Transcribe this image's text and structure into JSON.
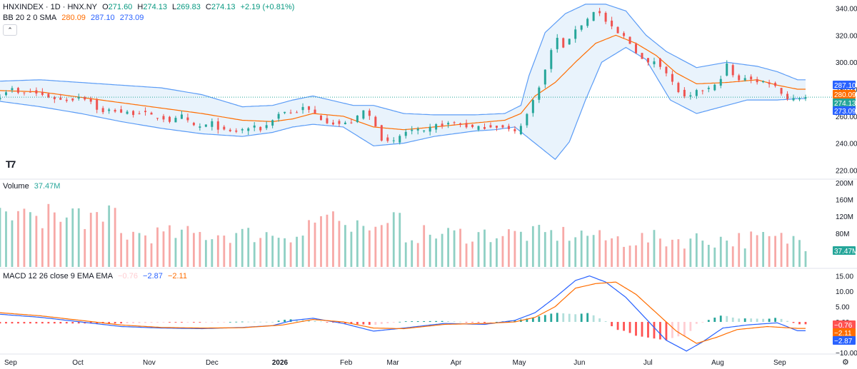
{
  "header": {
    "symbol": "HNXINDEX · 1D · HNX.NY",
    "o_label": "O",
    "o": "271.60",
    "h_label": "H",
    "h": "274.13",
    "l_label": "L",
    "l": "269.83",
    "c_label": "C",
    "c": "274.13",
    "change": "+2.19 (+0.81%)"
  },
  "bb_legend": {
    "label": "BB 20 2 0 SMA",
    "basis": "280.09",
    "upper": "287.10",
    "lower": "273.09"
  },
  "volume_legend": {
    "label": "Volume",
    "value": "37.47M"
  },
  "macd_legend": {
    "label": "MACD 12 26 close 9 EMA EMA",
    "hist": "−0.76",
    "macd": "−2.87",
    "signal": "−2.11"
  },
  "icons": {
    "collapse": "chevron-up-icon",
    "logo": "tradingview-logo-icon",
    "settings": "gear-icon"
  },
  "colors": {
    "up": "#26a69a",
    "down": "#ef5350",
    "vol_up": "#8fd0c4",
    "vol_down": "#f7a9a7",
    "bb_band": "#2962ff",
    "bb_line": "#5b9cf6",
    "basis": "#ff6d00",
    "fill": "#e3f0fb",
    "macd": "#2962ff",
    "signal": "#ff6d00",
    "hist_up_strong": "#26a69a",
    "hist_up_weak": "#b2dfdb",
    "hist_down_strong": "#ff5252",
    "hist_down_weak": "#ffcdd2"
  },
  "chart_data": {
    "type": "candlestick",
    "price_axis": {
      "ticks": [
        "340.00",
        "320.00",
        "300.00",
        "280.00",
        "260.00",
        "240.00",
        "220.00"
      ],
      "ylim": [
        216,
        344
      ]
    },
    "price_badges": [
      {
        "value": "287.10",
        "color": "#2962ff"
      },
      {
        "value": "280.09",
        "color": "#ff6d00"
      },
      {
        "value": "274.13",
        "color": "#26a69a"
      },
      {
        "value": "273.09",
        "color": "#2962ff"
      }
    ],
    "volume_axis": {
      "ticks": [
        "200M",
        "160M",
        "120M",
        "80M"
      ],
      "ylim": [
        0,
        200
      ],
      "badge": "37.47M"
    },
    "macd_axis": {
      "ticks": [
        "15.00",
        "10.00",
        "5.00",
        "0.00",
        "−5.00",
        "−10.00"
      ],
      "ylim": [
        -10,
        17
      ],
      "badges": [
        {
          "value": "−0.76",
          "color": "#ff5252"
        },
        {
          "value": "−2.11",
          "color": "#ff6d00"
        },
        {
          "value": "−2.87",
          "color": "#2962ff"
        }
      ]
    },
    "time_axis": [
      "Sep",
      "Oct",
      "Nov",
      "Dec",
      "2026",
      "Feb",
      "Mar",
      "Apr",
      "May",
      "Jun",
      "Jul",
      "Aug",
      "Sep"
    ],
    "time_axis_fraction": [
      0.0,
      0.08,
      0.163,
      0.237,
      0.315,
      0.395,
      0.45,
      0.525,
      0.598,
      0.67,
      0.752,
      0.832,
      0.905
    ],
    "close_path": [
      [
        0,
        275
      ],
      [
        5,
        281
      ],
      [
        10,
        276
      ],
      [
        15,
        278
      ],
      [
        20,
        276
      ],
      [
        25,
        274
      ],
      [
        30,
        272
      ],
      [
        35,
        272
      ],
      [
        40,
        275
      ],
      [
        45,
        271
      ],
      [
        50,
        262
      ],
      [
        55,
        265
      ],
      [
        60,
        263
      ],
      [
        65,
        262
      ],
      [
        70,
        263
      ],
      [
        75,
        260
      ],
      [
        80,
        259
      ],
      [
        85,
        256
      ],
      [
        90,
        260
      ],
      [
        95,
        253
      ],
      [
        100,
        252
      ],
      [
        105,
        255
      ],
      [
        110,
        249
      ],
      [
        115,
        248
      ],
      [
        120,
        250
      ],
      [
        125,
        252
      ],
      [
        130,
        250
      ],
      [
        135,
        258
      ],
      [
        140,
        264
      ],
      [
        145,
        262
      ],
      [
        150,
        266
      ],
      [
        155,
        263
      ],
      [
        160,
        257
      ],
      [
        165,
        255
      ],
      [
        170,
        254
      ],
      [
        175,
        256
      ],
      [
        180,
        264
      ],
      [
        185,
        257
      ],
      [
        190,
        240
      ],
      [
        195,
        241
      ],
      [
        200,
        248
      ],
      [
        205,
        250
      ],
      [
        210,
        248
      ],
      [
        215,
        253
      ],
      [
        220,
        254
      ],
      [
        225,
        255
      ],
      [
        230,
        253
      ],
      [
        235,
        251
      ],
      [
        240,
        252
      ],
      [
        245,
        253
      ],
      [
        250,
        251
      ],
      [
        255,
        248
      ],
      [
        260,
        258
      ],
      [
        265,
        275
      ],
      [
        270,
        294
      ],
      [
        275,
        319
      ],
      [
        280,
        310
      ],
      [
        285,
        325
      ],
      [
        290,
        330
      ],
      [
        295,
        340
      ],
      [
        300,
        330
      ],
      [
        305,
        322
      ],
      [
        310,
        318
      ],
      [
        315,
        308
      ],
      [
        320,
        298
      ],
      [
        325,
        302
      ],
      [
        330,
        292
      ],
      [
        335,
        280
      ],
      [
        340,
        272
      ],
      [
        345,
        278
      ],
      [
        350,
        280
      ],
      [
        355,
        283
      ],
      [
        360,
        298
      ],
      [
        365,
        285
      ],
      [
        370,
        290
      ],
      [
        375,
        285
      ],
      [
        380,
        286
      ],
      [
        385,
        281
      ],
      [
        390,
        273
      ],
      [
        395,
        274
      ]
    ],
    "bb_upper": [
      [
        0,
        286
      ],
      [
        20,
        287
      ],
      [
        40,
        285
      ],
      [
        60,
        283
      ],
      [
        80,
        281
      ],
      [
        100,
        276
      ],
      [
        120,
        267
      ],
      [
        135,
        268
      ],
      [
        145,
        272
      ],
      [
        155,
        275
      ],
      [
        175,
        268
      ],
      [
        185,
        268
      ],
      [
        200,
        262
      ],
      [
        215,
        261
      ],
      [
        235,
        261
      ],
      [
        250,
        262
      ],
      [
        258,
        268
      ],
      [
        262,
        290
      ],
      [
        270,
        322
      ],
      [
        280,
        336
      ],
      [
        290,
        343
      ],
      [
        300,
        343
      ],
      [
        310,
        338
      ],
      [
        320,
        320
      ],
      [
        330,
        308
      ],
      [
        345,
        296
      ],
      [
        360,
        300
      ],
      [
        375,
        297
      ],
      [
        385,
        293
      ],
      [
        395,
        287
      ]
    ],
    "bb_lower": [
      [
        0,
        271
      ],
      [
        20,
        267
      ],
      [
        40,
        262
      ],
      [
        60,
        256
      ],
      [
        80,
        251
      ],
      [
        100,
        247
      ],
      [
        120,
        245
      ],
      [
        135,
        248
      ],
      [
        145,
        252
      ],
      [
        155,
        254
      ],
      [
        170,
        252
      ],
      [
        185,
        238
      ],
      [
        200,
        240
      ],
      [
        215,
        245
      ],
      [
        235,
        249
      ],
      [
        245,
        250
      ],
      [
        255,
        252
      ],
      [
        265,
        240
      ],
      [
        275,
        228
      ],
      [
        282,
        241
      ],
      [
        290,
        272
      ],
      [
        298,
        300
      ],
      [
        310,
        311
      ],
      [
        320,
        302
      ],
      [
        332,
        272
      ],
      [
        345,
        262
      ],
      [
        355,
        266
      ],
      [
        370,
        272
      ],
      [
        385,
        272
      ],
      [
        395,
        273
      ]
    ],
    "bb_basis": [
      [
        0,
        279
      ],
      [
        20,
        278
      ],
      [
        40,
        274
      ],
      [
        60,
        270
      ],
      [
        80,
        266
      ],
      [
        100,
        262
      ],
      [
        120,
        257
      ],
      [
        135,
        256
      ],
      [
        145,
        258
      ],
      [
        155,
        262
      ],
      [
        170,
        260
      ],
      [
        185,
        252
      ],
      [
        200,
        250
      ],
      [
        215,
        252
      ],
      [
        235,
        255
      ],
      [
        250,
        257
      ],
      [
        258,
        262
      ],
      [
        265,
        275
      ],
      [
        275,
        285
      ],
      [
        285,
        300
      ],
      [
        295,
        314
      ],
      [
        305,
        320
      ],
      [
        315,
        314
      ],
      [
        325,
        305
      ],
      [
        335,
        292
      ],
      [
        345,
        284
      ],
      [
        360,
        285
      ],
      [
        375,
        287
      ],
      [
        385,
        283
      ],
      [
        395,
        280
      ]
    ],
    "macd_line": [
      [
        0,
        2.5
      ],
      [
        20,
        1.5
      ],
      [
        40,
        0.0
      ],
      [
        60,
        -1.5
      ],
      [
        80,
        -2.0
      ],
      [
        100,
        -2.2
      ],
      [
        120,
        -1.8
      ],
      [
        135,
        -1.2
      ],
      [
        145,
        0.5
      ],
      [
        155,
        1.2
      ],
      [
        170,
        -0.5
      ],
      [
        185,
        -3.0
      ],
      [
        200,
        -2.0
      ],
      [
        220,
        -0.5
      ],
      [
        240,
        -0.8
      ],
      [
        255,
        0.5
      ],
      [
        265,
        3.0
      ],
      [
        275,
        8.0
      ],
      [
        285,
        13.5
      ],
      [
        292,
        15.0
      ],
      [
        300,
        13.0
      ],
      [
        310,
        8.0
      ],
      [
        320,
        1.0
      ],
      [
        330,
        -6.0
      ],
      [
        340,
        -9.5
      ],
      [
        348,
        -6.5
      ],
      [
        358,
        -2.0
      ],
      [
        370,
        -1.0
      ],
      [
        385,
        -0.3
      ],
      [
        395,
        -2.87
      ]
    ],
    "signal_line": [
      [
        0,
        3.0
      ],
      [
        20,
        2.0
      ],
      [
        40,
        0.5
      ],
      [
        60,
        -1.0
      ],
      [
        80,
        -1.8
      ],
      [
        100,
        -2.0
      ],
      [
        120,
        -1.9
      ],
      [
        140,
        -1.0
      ],
      [
        155,
        0.8
      ],
      [
        170,
        0.0
      ],
      [
        185,
        -2.0
      ],
      [
        200,
        -2.2
      ],
      [
        220,
        -0.8
      ],
      [
        240,
        -0.5
      ],
      [
        255,
        0.0
      ],
      [
        265,
        1.5
      ],
      [
        275,
        5.0
      ],
      [
        285,
        11.0
      ],
      [
        295,
        12.5
      ],
      [
        305,
        13.0
      ],
      [
        315,
        9.0
      ],
      [
        325,
        3.0
      ],
      [
        335,
        -3.0
      ],
      [
        345,
        -7.0
      ],
      [
        355,
        -5.0
      ],
      [
        365,
        -2.5
      ],
      [
        380,
        -1.5
      ],
      [
        395,
        -2.11
      ]
    ]
  }
}
